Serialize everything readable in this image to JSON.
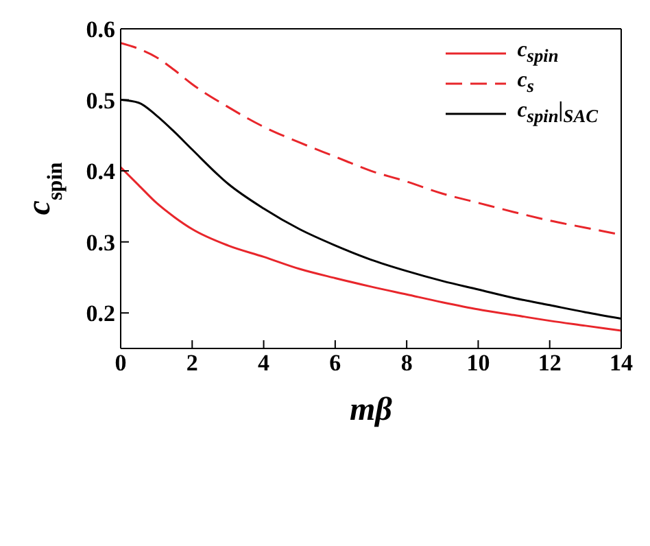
{
  "chart_data": {
    "type": "line",
    "xlabel": "mβ",
    "ylabel": "c$_{spin}$",
    "x": [
      0,
      0.5,
      1,
      1.5,
      2,
      3,
      4,
      5,
      6,
      7,
      8,
      9,
      10,
      11,
      12,
      13,
      14
    ],
    "series": [
      {
        "name": "c$_{spin}$",
        "color": "#e8262b",
        "line_style": "solid",
        "values": [
          0.405,
          0.38,
          0.355,
          0.335,
          0.318,
          0.295,
          0.279,
          0.262,
          0.249,
          0.237,
          0.226,
          0.215,
          0.205,
          0.197,
          0.189,
          0.182,
          0.175
        ]
      },
      {
        "name": "c$_{s}$",
        "color": "#e8262b",
        "line_style": "dashed",
        "values": [
          0.58,
          0.572,
          0.56,
          0.542,
          0.522,
          0.49,
          0.462,
          0.44,
          0.42,
          0.4,
          0.385,
          0.368,
          0.355,
          0.342,
          0.33,
          0.32,
          0.31
        ]
      },
      {
        "name": "c$_{spin}$|$_{SAC}$",
        "color": "#000000",
        "line_style": "solid",
        "values": [
          0.5,
          0.496,
          0.478,
          0.455,
          0.43,
          0.382,
          0.347,
          0.318,
          0.295,
          0.275,
          0.259,
          0.245,
          0.233,
          0.221,
          0.211,
          0.201,
          0.192
        ]
      }
    ],
    "xlim": [
      0,
      14
    ],
    "xticks": [
      0,
      2,
      4,
      6,
      8,
      10,
      12,
      14
    ],
    "ylim": [
      0.15,
      0.6
    ],
    "yticks": [
      0.2,
      0.3,
      0.4,
      0.5,
      0.6
    ],
    "grid": false,
    "legend": "top right",
    "marker": "none"
  }
}
